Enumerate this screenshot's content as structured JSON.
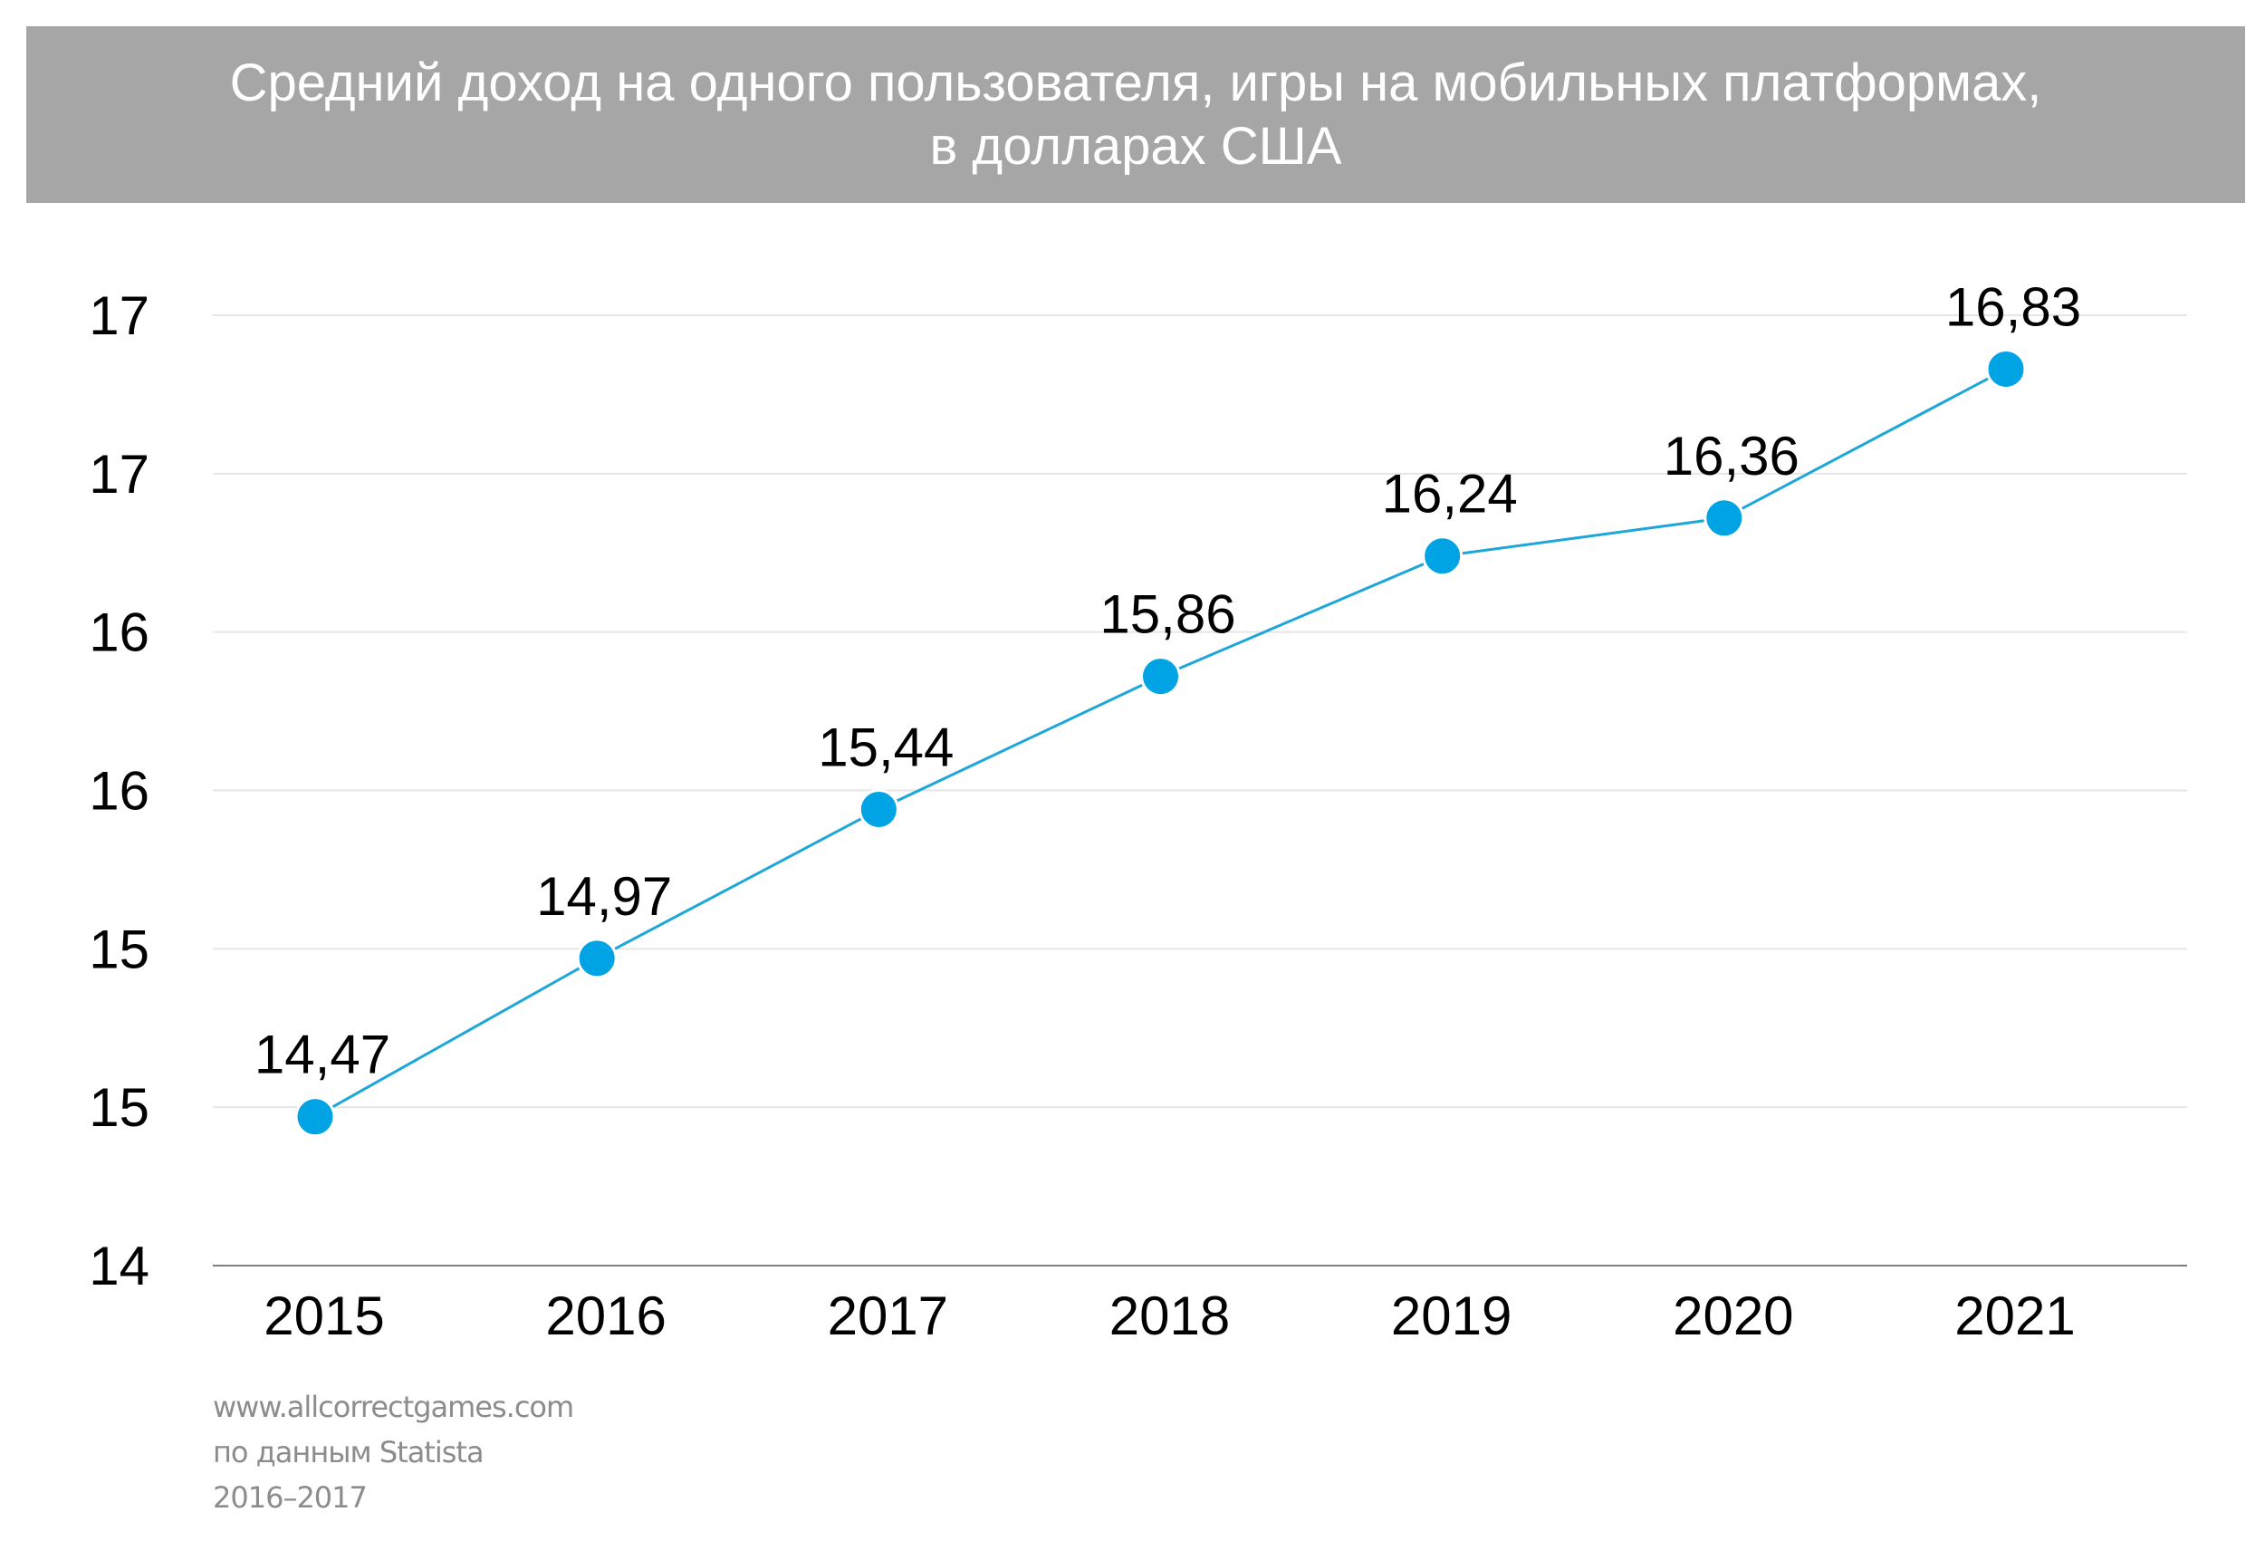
{
  "title": {
    "line1": "Средний доход на одного пользователя, игры на мобильных платформах,",
    "line2": "в долларах США"
  },
  "footer": {
    "line1": "www.allcorrectgames.com",
    "line2": "по данным Statista",
    "line3": "2016–2017"
  },
  "colors": {
    "line": "#1da7d9",
    "marker": "#00a3e4",
    "grid": "#e6e6e6",
    "axis": "#7f7f7f",
    "title_bg": "#a6a6a6",
    "footer_text": "#8c8c8c"
  },
  "chart_data": {
    "type": "line",
    "categories": [
      "2015",
      "2016",
      "2017",
      "2018",
      "2019",
      "2020",
      "2021"
    ],
    "values": [
      14.47,
      14.97,
      15.44,
      15.86,
      16.24,
      16.36,
      16.83
    ],
    "data_labels": [
      "14,47",
      "14,97",
      "15,44",
      "15,86",
      "16,24",
      "16,36",
      "16,83"
    ],
    "y_ticks": [
      14,
      14.5,
      15,
      15.5,
      16,
      16.5,
      17
    ],
    "y_tick_labels": [
      "14",
      "15",
      "15",
      "16",
      "16",
      "17",
      "17"
    ],
    "ylim": [
      14,
      17
    ],
    "grid": true,
    "legend": false
  }
}
